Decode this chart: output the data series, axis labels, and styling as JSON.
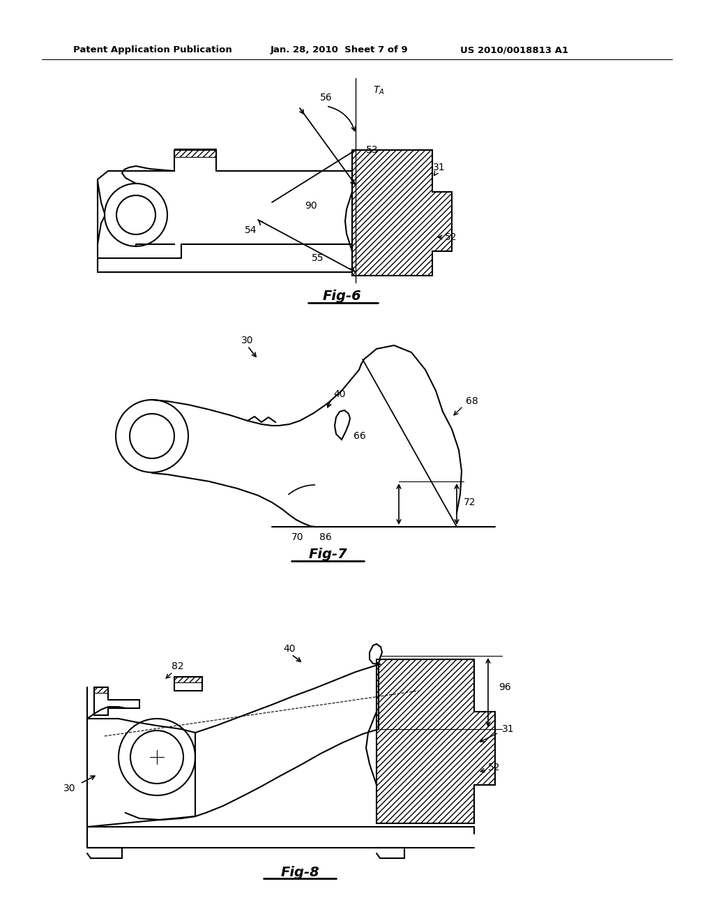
{
  "bg_color": "#ffffff",
  "header_left": "Patent Application Publication",
  "header_mid": "Jan. 28, 2010  Sheet 7 of 9",
  "header_right": "US 2010/0018813 A1",
  "fig6_label": "Fig-6",
  "fig7_label": "Fig-7",
  "fig8_label": "Fig-8",
  "line_color": "#000000"
}
